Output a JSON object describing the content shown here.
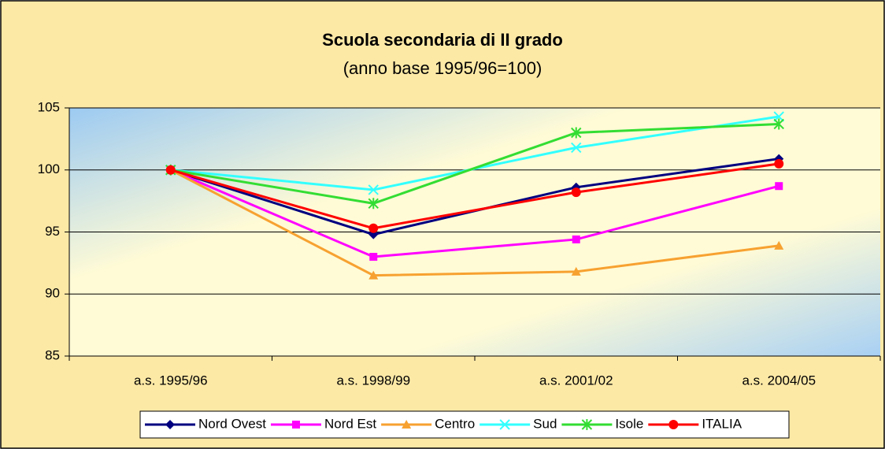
{
  "chart_data": {
    "type": "line",
    "title": "Scuola secondaria di II grado",
    "subtitle": "(anno base 1995/96=100)",
    "categories": [
      "a.s. 1995/96",
      "a.s. 1998/99",
      "a.s. 2001/02",
      "a.s. 2004/05"
    ],
    "series": [
      {
        "name": "Nord Ovest",
        "color": "#000080",
        "marker": "diamond",
        "values": [
          100,
          94.8,
          98.6,
          100.9
        ]
      },
      {
        "name": "Nord Est",
        "color": "#ff00ff",
        "marker": "square",
        "values": [
          100,
          93.0,
          94.4,
          98.7
        ]
      },
      {
        "name": "Centro",
        "color": "#f7a130",
        "marker": "triangle",
        "values": [
          100,
          91.5,
          91.8,
          93.9
        ]
      },
      {
        "name": "Sud",
        "color": "#33ffff",
        "marker": "x",
        "values": [
          100,
          98.4,
          101.8,
          104.3
        ]
      },
      {
        "name": "Isole",
        "color": "#33dd33",
        "marker": "star",
        "values": [
          100,
          97.3,
          103.0,
          103.7
        ]
      },
      {
        "name": "ITALIA",
        "color": "#ff0000",
        "marker": "circle",
        "values": [
          100,
          95.3,
          98.2,
          100.5
        ]
      }
    ],
    "ylim": [
      85,
      105
    ],
    "yticks": [
      85,
      90,
      95,
      100,
      105
    ],
    "grid": true,
    "legend": "bottom"
  }
}
